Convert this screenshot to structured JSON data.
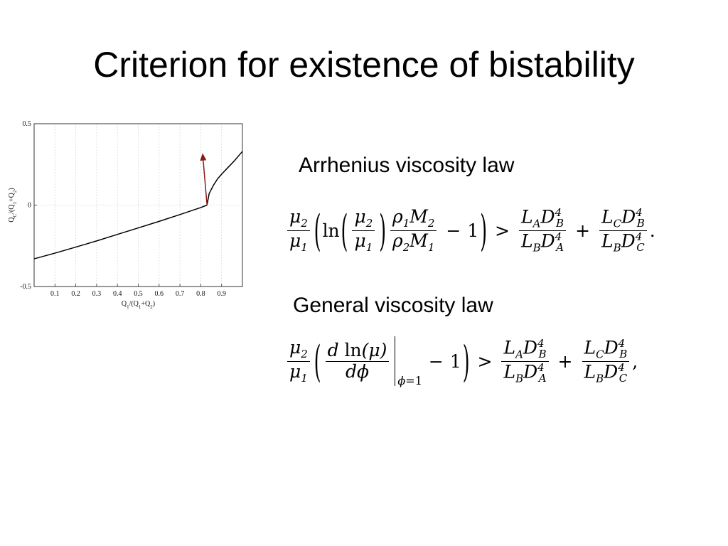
{
  "slide": {
    "title": "Criterion for existence of bistability",
    "arrhenius_label": "Arrhenius viscosity law",
    "general_label": "General viscosity law"
  },
  "chart_data": {
    "type": "line",
    "xlabel": "Q1/(Q1+Q2)",
    "ylabel": "QC/(Q1+Q2)",
    "xlim": [
      0.0,
      1.0
    ],
    "ylim": [
      -0.5,
      0.5
    ],
    "x_ticks": [
      "0.1",
      "0.2",
      "0.3",
      "0.4",
      "0.5",
      "0.6",
      "0.7",
      "0.8",
      "0.9"
    ],
    "y_ticks": [
      "0.5",
      "0",
      "-0.5"
    ],
    "grid": true,
    "series": [
      {
        "x": [
          0.0,
          0.1,
          0.2,
          0.3,
          0.4,
          0.5,
          0.6,
          0.7,
          0.8,
          0.83
        ],
        "y": [
          -0.33,
          -0.295,
          -0.258,
          -0.22,
          -0.18,
          -0.14,
          -0.1,
          -0.058,
          -0.015,
          0.0
        ],
        "color": "#000000"
      },
      {
        "x": [
          0.83,
          0.84,
          0.86,
          0.88,
          0.9,
          0.93,
          0.96,
          1.0
        ],
        "y": [
          0.0,
          0.07,
          0.12,
          0.16,
          0.19,
          0.23,
          0.27,
          0.33
        ],
        "color": "#000000"
      }
    ],
    "annotations": [
      {
        "type": "arrow",
        "from": [
          0.83,
          0.0
        ],
        "to": [
          0.81,
          0.3
        ],
        "color": "#8b1a1a"
      }
    ]
  }
}
